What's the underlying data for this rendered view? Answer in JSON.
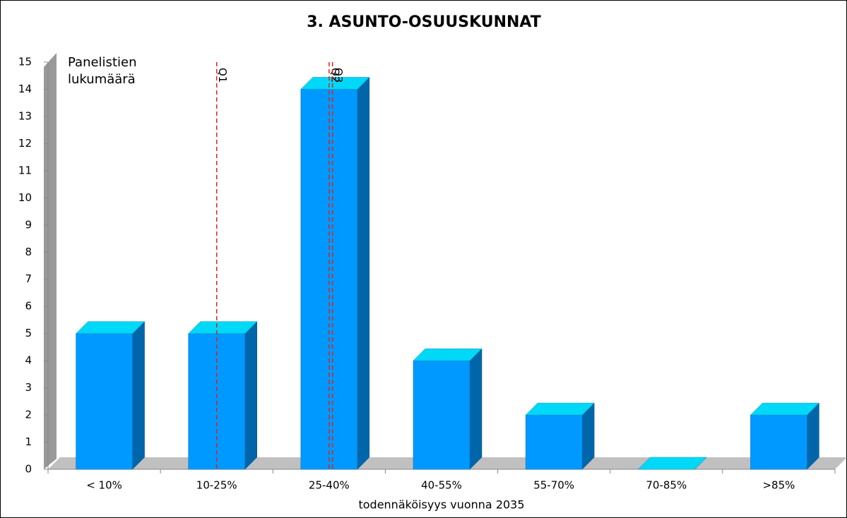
{
  "chart_data": {
    "type": "bar3d",
    "title": "3. ASUNTO-OSUUSKUNNAT",
    "ylabel": "Panelistien lukumäärä",
    "xlabel": "todennäköisyys vuonna 2035",
    "categories": [
      "< 10%",
      "10-25%",
      "25-40%",
      "40-55%",
      "55-70%",
      "70-85%",
      ">85%"
    ],
    "values": [
      5,
      5,
      14,
      4,
      2,
      0,
      2
    ],
    "color": "#0099ff",
    "ylim": [
      0,
      15
    ],
    "yticks": [
      0,
      1,
      2,
      3,
      4,
      5,
      6,
      7,
      8,
      9,
      10,
      11,
      12,
      13,
      14,
      15
    ],
    "grid": false,
    "markers": [
      {
        "label": "Q1",
        "x": 1,
        "color": "#e02020"
      },
      {
        "label": "Q2",
        "x": 2,
        "color": "#e02020"
      },
      {
        "label": "Q3",
        "x": 2.03,
        "color": "#e02020"
      }
    ]
  }
}
